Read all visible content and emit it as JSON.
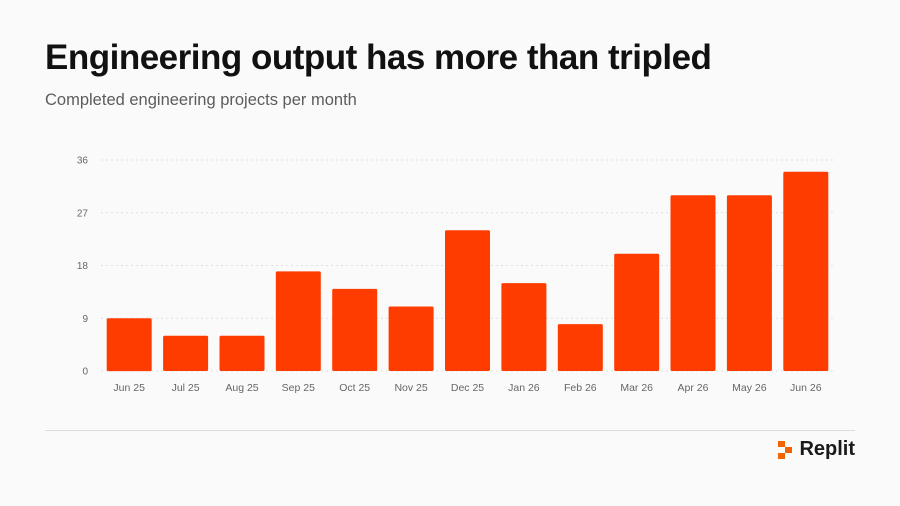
{
  "header": {
    "title": "Engineering output has more than tripled",
    "subtitle": "Completed engineering projects per month"
  },
  "brand": {
    "name": "Replit",
    "icon": "replit-logo-icon",
    "color": "#f26207"
  },
  "colors": {
    "bar": "#ff3c00",
    "grid": "#e0e0e0",
    "tick": "#666666"
  },
  "chart_data": {
    "type": "bar",
    "title": "",
    "xlabel": "",
    "ylabel": "",
    "categories": [
      "Jun 25",
      "Jul 25",
      "Aug 25",
      "Sep 25",
      "Oct 25",
      "Nov 25",
      "Dec 25",
      "Jan 26",
      "Feb 26",
      "Mar 26",
      "Apr 26",
      "May 26",
      "Jun 26"
    ],
    "values": [
      9,
      6,
      6,
      17,
      14,
      11,
      24,
      15,
      8,
      20,
      30,
      30,
      34
    ],
    "ylim": [
      0,
      36
    ],
    "yticks": [
      0,
      9,
      18,
      27,
      36
    ],
    "grid": true,
    "legend": "none"
  }
}
